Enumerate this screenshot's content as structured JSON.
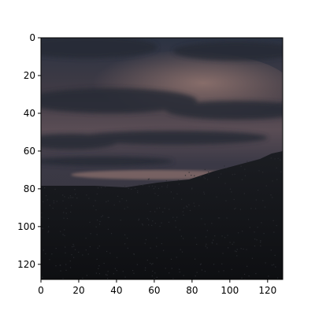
{
  "image": {
    "x_ticks": [
      "0",
      "20",
      "40",
      "60",
      "80",
      "100",
      "120"
    ],
    "y_ticks": [
      "0",
      "20",
      "40",
      "60",
      "80",
      "100",
      "120"
    ],
    "x_range": [
      0,
      128
    ],
    "y_range": [
      128,
      0
    ],
    "colors": {
      "sky_top": "#2b3241",
      "sky_mid": "#4a4249",
      "sky_glow": "#b78a78",
      "clouds": "#262b36",
      "forest": "#121317",
      "trees": "#1a1c21"
    }
  }
}
